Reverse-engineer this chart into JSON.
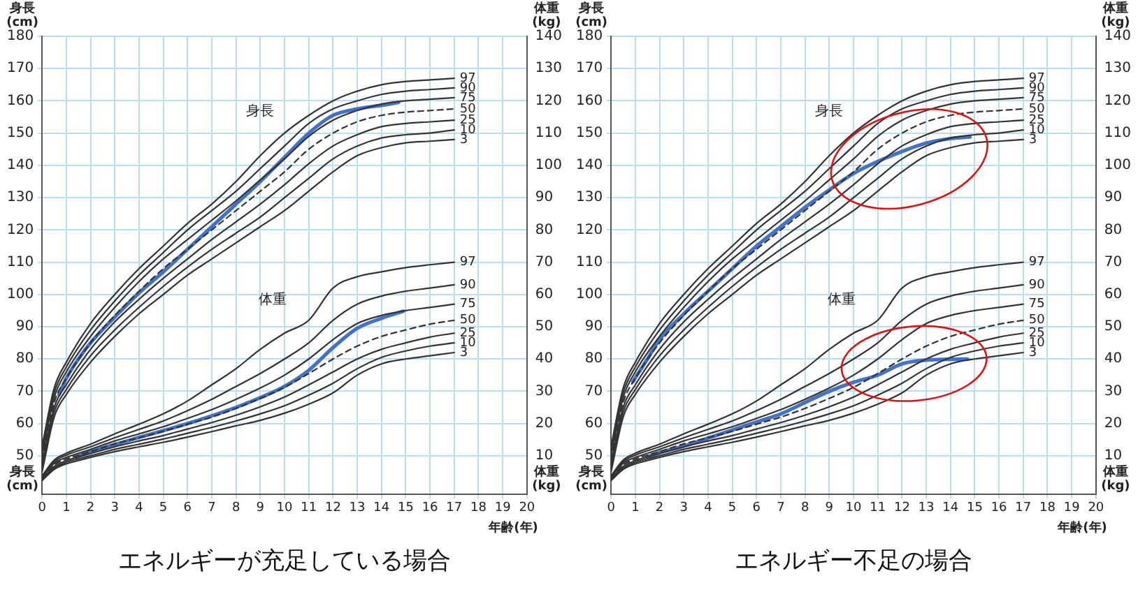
{
  "chart_data": [
    {
      "type": "line",
      "title": "エネルギーが充足している場合",
      "xlabel": "年齢(年)",
      "ylabel": "身長\n(cm)",
      "y2label": "体重\n(kg)",
      "x": [
        0,
        0.5,
        1,
        2,
        3,
        4,
        5,
        6,
        7,
        8,
        9,
        10,
        11,
        12,
        13,
        14,
        15,
        16,
        17
      ],
      "xlim": [
        0,
        20
      ],
      "xticks": [
        0,
        1,
        2,
        3,
        4,
        5,
        6,
        7,
        8,
        9,
        10,
        11,
        12,
        13,
        14,
        15,
        16,
        17,
        18,
        19,
        20
      ],
      "ylim": [
        38,
        180
      ],
      "yticks": [
        50,
        60,
        70,
        80,
        90,
        100,
        110,
        120,
        130,
        140,
        150,
        160,
        170,
        180
      ],
      "y2lim": [
        -2,
        140
      ],
      "y2ticks": [
        10,
        20,
        30,
        40,
        50,
        60,
        70,
        80,
        90,
        100,
        110,
        120,
        130,
        140
      ],
      "grid": true,
      "legend": false,
      "marker": "none",
      "annotations": [
        "身長",
        "体重"
      ],
      "series": [
        {
          "name": "97",
          "color": "#333333",
          "values": [
            53,
            71,
            79,
            91,
            100,
            108,
            115,
            122,
            128,
            135,
            143,
            150,
            155.5,
            160,
            163,
            165,
            166,
            166.5,
            167
          ]
        },
        {
          "name": "90",
          "color": "#333333",
          "values": [
            51.5,
            69.5,
            77.5,
            89,
            98,
            106,
            113,
            120,
            126,
            132,
            139,
            146,
            153,
            157.5,
            160,
            162,
            163,
            163.5,
            164
          ]
        },
        {
          "name": "75",
          "color": "#333333",
          "values": [
            50,
            68,
            76,
            87,
            96,
            104,
            111,
            117,
            123,
            129,
            135.5,
            142,
            149,
            154,
            157,
            159,
            160,
            160.5,
            161
          ]
        },
        {
          "name": "50",
          "color": "#333333",
          "line_style": "dashed",
          "values": [
            49,
            66.5,
            74,
            85,
            93.5,
            101,
            108,
            114,
            120,
            126,
            132,
            138,
            145,
            150,
            153.5,
            155.5,
            156.5,
            157,
            157.5
          ]
        },
        {
          "name": "25",
          "color": "#333333",
          "values": [
            47.5,
            65,
            72,
            83,
            91.5,
            98.5,
            105,
            111,
            117,
            122.5,
            128,
            134,
            140.5,
            146,
            149.5,
            152,
            153,
            153.5,
            154
          ]
        },
        {
          "name": "10",
          "color": "#333333",
          "values": [
            46.5,
            63.5,
            70.5,
            81,
            89,
            96,
            102.5,
            108.5,
            114,
            119,
            124,
            130,
            136,
            142,
            146,
            148.5,
            149.5,
            150,
            151
          ]
        },
        {
          "name": "3",
          "color": "#333333",
          "values": [
            45,
            62,
            69,
            79,
            87,
            94,
            100,
            106,
            111,
            116,
            121,
            126,
            132,
            138,
            143,
            145.5,
            147,
            147.5,
            148
          ]
        },
        {
          "color": "#4472c4",
          "x": [
            0.7,
            1,
            1.5,
            2,
            3,
            4,
            5,
            6,
            7,
            8,
            9,
            10,
            11,
            12,
            13,
            14,
            14.7
          ],
          "values": [
            69,
            74,
            80,
            85,
            93,
            100.5,
            107,
            114,
            121,
            128,
            135,
            142.5,
            150,
            155.5,
            157.5,
            158.6,
            159.5
          ]
        },
        {
          "name": "97",
          "color": "#333333",
          "axis": "y2",
          "values": [
            3.8,
            8.7,
            10.8,
            13.6,
            16.8,
            19.8,
            23,
            27,
            32,
            37,
            43,
            48,
            52,
            62,
            65.5,
            67,
            68.3,
            69.2,
            70
          ]
        },
        {
          "name": "90",
          "color": "#333333",
          "axis": "y2",
          "values": [
            3.5,
            8.2,
            10.2,
            12.8,
            15.6,
            18.2,
            20.8,
            24,
            27.5,
            31.5,
            35.5,
            40,
            45,
            52,
            57,
            59.5,
            61,
            62,
            63
          ]
        },
        {
          "name": "75",
          "color": "#333333",
          "axis": "y2",
          "values": [
            3.3,
            7.7,
            9.5,
            12,
            14.6,
            16.8,
            19,
            21.6,
            24.3,
            27.5,
            31,
            35,
            40,
            46,
            51,
            53.5,
            55,
            56,
            57
          ]
        },
        {
          "name": "50",
          "color": "#333333",
          "axis": "y2",
          "line_style": "dashed",
          "values": [
            3,
            7.2,
            9,
            11.3,
            13.7,
            15.6,
            17.6,
            19.8,
            22,
            24.7,
            27.8,
            31.2,
            35.5,
            40,
            44,
            47,
            49,
            50.8,
            52
          ]
        },
        {
          "name": "25",
          "color": "#333333",
          "axis": "y2",
          "values": [
            2.8,
            6.7,
            8.5,
            10.7,
            12.8,
            14.6,
            16.3,
            18.3,
            20.3,
            22.6,
            25.2,
            28.2,
            32,
            36,
            40,
            43,
            45,
            46.8,
            48
          ]
        },
        {
          "name": "10",
          "color": "#333333",
          "axis": "y2",
          "values": [
            2.6,
            6.2,
            8,
            10,
            12,
            13.6,
            15.2,
            17,
            18.8,
            20.8,
            23,
            25.5,
            28.8,
            32.5,
            37,
            40.5,
            42.5,
            44,
            45
          ]
        },
        {
          "name": "3",
          "color": "#333333",
          "axis": "y2",
          "values": [
            2.3,
            5.8,
            7.5,
            9.5,
            11.3,
            12.8,
            14.2,
            15.8,
            17.5,
            19.3,
            21,
            23.2,
            26,
            29.5,
            35,
            38.5,
            40,
            41,
            42
          ]
        },
        {
          "color": "#4472c4",
          "axis": "y2",
          "x": [
            1.4,
            2,
            3,
            4,
            5,
            6,
            7,
            8,
            9,
            10,
            11,
            12,
            13,
            14,
            14.9
          ],
          "values": [
            9.6,
            11.3,
            13.5,
            15.7,
            17.8,
            20,
            22.4,
            25,
            28,
            31.5,
            36.5,
            43.5,
            49.5,
            52.6,
            54.8
          ]
        }
      ]
    },
    {
      "type": "line",
      "title": "エネルギー不足の場合",
      "xlabel": "年齢(年)",
      "ylabel": "身長\n(cm)",
      "y2label": "体重\n(kg)",
      "x": [
        0,
        0.5,
        1,
        2,
        3,
        4,
        5,
        6,
        7,
        8,
        9,
        10,
        11,
        12,
        13,
        14,
        15,
        16,
        17
      ],
      "xlim": [
        0,
        20
      ],
      "xticks": [
        0,
        1,
        2,
        3,
        4,
        5,
        6,
        7,
        8,
        9,
        10,
        11,
        12,
        13,
        14,
        15,
        16,
        17,
        18,
        19,
        20
      ],
      "ylim": [
        38,
        180
      ],
      "yticks": [
        50,
        60,
        70,
        80,
        90,
        100,
        110,
        120,
        130,
        140,
        150,
        160,
        170,
        180
      ],
      "y2lim": [
        -2,
        140
      ],
      "y2ticks": [
        10,
        20,
        30,
        40,
        50,
        60,
        70,
        80,
        90,
        100,
        110,
        120,
        130,
        140
      ],
      "grid": true,
      "legend": false,
      "marker": "none",
      "annotations": [
        "身長",
        "体重"
      ],
      "series": [
        {
          "name": "97",
          "color": "#333333",
          "values": [
            53,
            71,
            79,
            91,
            100,
            108,
            115,
            122,
            128,
            135,
            143,
            150,
            155.5,
            160,
            163,
            165,
            166,
            166.5,
            167
          ]
        },
        {
          "name": "90",
          "color": "#333333",
          "values": [
            51.5,
            69.5,
            77.5,
            89,
            98,
            106,
            113,
            120,
            126,
            132,
            139,
            146,
            153,
            157.5,
            160,
            162,
            163,
            163.5,
            164
          ]
        },
        {
          "name": "75",
          "color": "#333333",
          "values": [
            50,
            68,
            76,
            87,
            96,
            104,
            111,
            117,
            123,
            129,
            135.5,
            142,
            149,
            154,
            157,
            159,
            160,
            160.5,
            161
          ]
        },
        {
          "name": "50",
          "color": "#333333",
          "line_style": "dashed",
          "values": [
            49,
            66.5,
            74,
            85,
            93.5,
            101,
            108,
            114,
            120,
            126,
            132,
            138,
            145,
            150,
            153.5,
            155.5,
            156.5,
            157,
            157.5
          ]
        },
        {
          "name": "25",
          "color": "#333333",
          "values": [
            47.5,
            65,
            72,
            83,
            91.5,
            98.5,
            105,
            111,
            117,
            122.5,
            128,
            134,
            140.5,
            146,
            149.5,
            152,
            153,
            153.5,
            154
          ]
        },
        {
          "name": "10",
          "color": "#333333",
          "values": [
            46.5,
            63.5,
            70.5,
            81,
            89,
            96,
            102.5,
            108.5,
            114,
            119,
            124,
            130,
            136,
            142,
            146,
            148.5,
            149.5,
            150,
            151
          ]
        },
        {
          "name": "3",
          "color": "#333333",
          "values": [
            45,
            62,
            69,
            79,
            87,
            94,
            100,
            106,
            111,
            116,
            121,
            126,
            132,
            138,
            143,
            145.5,
            147,
            147.5,
            148
          ]
        },
        {
          "color": "#4472c4",
          "x": [
            0.9,
            1.5,
            2,
            3,
            4,
            5,
            6,
            7,
            8,
            9,
            10,
            11,
            12,
            13,
            14,
            14.8
          ],
          "values": [
            73,
            80,
            86,
            94,
            101,
            108,
            115,
            121,
            127,
            132.4,
            137.5,
            141.2,
            144.3,
            146.9,
            148.3,
            148.8
          ]
        },
        {
          "name": "97",
          "color": "#333333",
          "axis": "y2",
          "values": [
            3.8,
            8.7,
            10.8,
            13.6,
            16.8,
            19.8,
            23,
            27,
            32,
            37,
            43,
            48,
            52,
            62,
            65.5,
            67,
            68.3,
            69.2,
            70
          ]
        },
        {
          "name": "90",
          "color": "#333333",
          "axis": "y2",
          "values": [
            3.5,
            8.2,
            10.2,
            12.8,
            15.6,
            18.2,
            20.8,
            24,
            27.5,
            31.5,
            35.5,
            40,
            45,
            52,
            57,
            59.5,
            61,
            62,
            63
          ]
        },
        {
          "name": "75",
          "color": "#333333",
          "axis": "y2",
          "values": [
            3.3,
            7.7,
            9.5,
            12,
            14.6,
            16.8,
            19,
            21.6,
            24.3,
            27.5,
            31,
            35,
            40,
            46,
            51,
            53.5,
            55,
            56,
            57
          ]
        },
        {
          "name": "50",
          "color": "#333333",
          "axis": "y2",
          "line_style": "dashed",
          "values": [
            3,
            7.2,
            9,
            11.3,
            13.7,
            15.6,
            17.6,
            19.8,
            22,
            24.7,
            27.8,
            31.2,
            35.5,
            40,
            44,
            47,
            49,
            50.8,
            52
          ]
        },
        {
          "name": "25",
          "color": "#333333",
          "axis": "y2",
          "values": [
            2.8,
            6.7,
            8.5,
            10.7,
            12.8,
            14.6,
            16.3,
            18.3,
            20.3,
            22.6,
            25.2,
            28.2,
            32,
            36,
            40,
            43,
            45,
            46.8,
            48
          ]
        },
        {
          "name": "10",
          "color": "#333333",
          "axis": "y2",
          "values": [
            2.6,
            6.2,
            8,
            10,
            12,
            13.6,
            15.2,
            17,
            18.8,
            20.8,
            23,
            25.5,
            28.8,
            32.5,
            37,
            40.5,
            42.5,
            44,
            45
          ]
        },
        {
          "name": "3",
          "color": "#333333",
          "axis": "y2",
          "values": [
            2.3,
            5.8,
            7.5,
            9.5,
            11.3,
            12.8,
            14.2,
            15.8,
            17.5,
            19.3,
            21,
            23.2,
            26,
            29.5,
            35,
            38.5,
            40,
            41,
            42
          ]
        },
        {
          "color": "#4472c4",
          "axis": "y2",
          "x": [
            1.5,
            2,
            3,
            4,
            5,
            6,
            7,
            8,
            9,
            10,
            11,
            12,
            12.9,
            14,
            14.7
          ],
          "values": [
            9.7,
            11,
            13,
            15.5,
            18,
            20.5,
            23,
            26.5,
            30,
            32.8,
            35,
            38.5,
            39.6,
            39.9,
            40
          ]
        }
      ]
    }
  ]
}
